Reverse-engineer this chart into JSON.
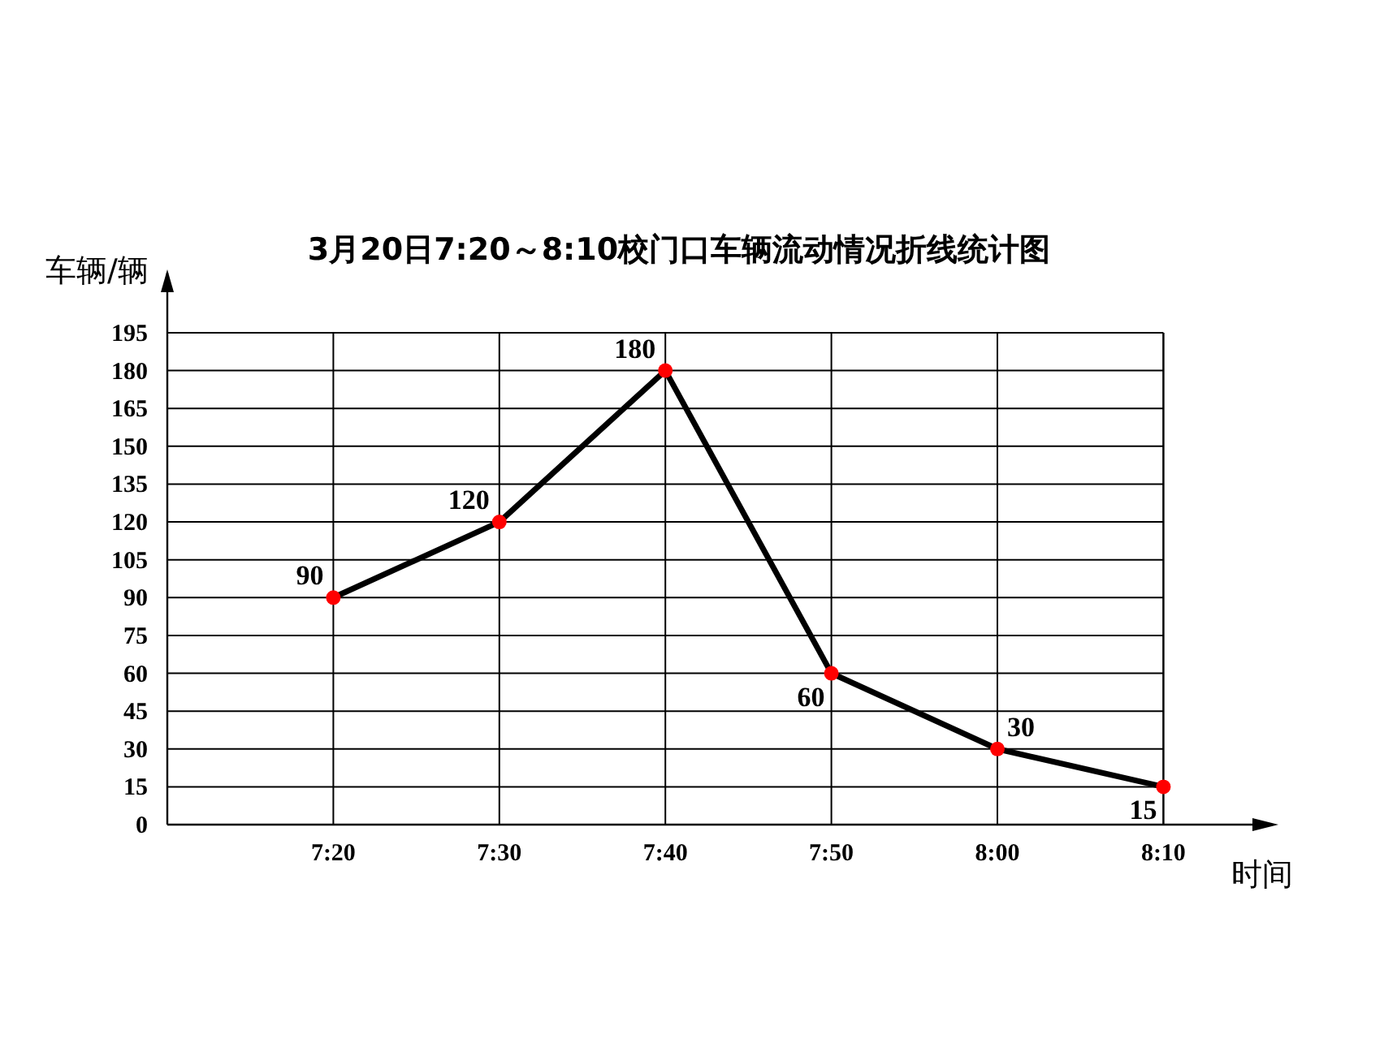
{
  "chart_data": {
    "type": "line",
    "title": "3月20日7:20～8:10校门口车辆流动情况折线统计图",
    "xlabel": "时间",
    "ylabel": "车辆/辆",
    "categories": [
      "7:20",
      "7:30",
      "7:40",
      "7:50",
      "8:00",
      "8:10"
    ],
    "series": [
      {
        "color": "#000000",
        "values": [
          90,
          120,
          180,
          60,
          30,
          15
        ]
      }
    ],
    "ylim": [
      0,
      195
    ],
    "yticks": [
      0,
      15,
      30,
      45,
      60,
      75,
      90,
      105,
      120,
      135,
      150,
      165,
      180,
      195
    ],
    "grid": true,
    "marker": "circle",
    "data_labels": true
  }
}
